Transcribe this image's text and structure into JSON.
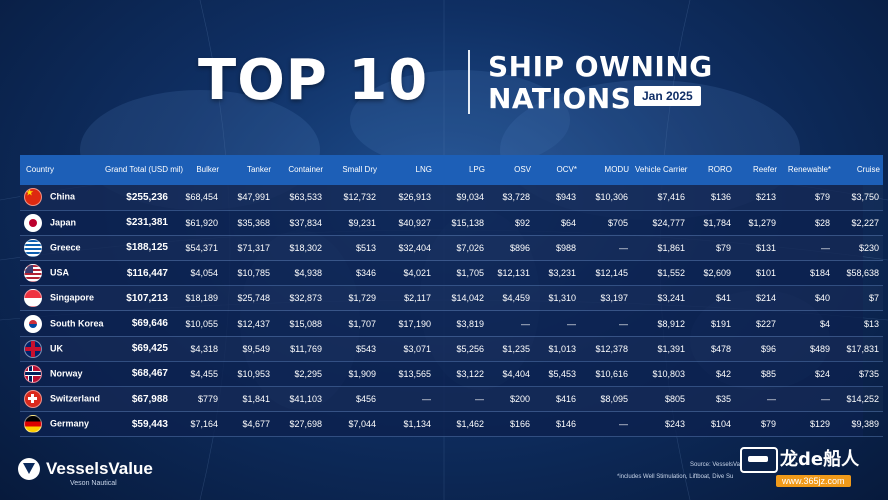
{
  "title": {
    "main": "TOP 10",
    "line1": "SHIP OWNING",
    "line2": "NATIONS",
    "date": "Jan 2025"
  },
  "table": {
    "headers": [
      "Country",
      "Grand Total (USD mil)",
      "Bulker",
      "Tanker",
      "Container",
      "Small Dry",
      "LNG",
      "LPG",
      "OSV",
      "OCV*",
      "MODU",
      "Vehicle Carrier",
      "RORO",
      "Reefer",
      "Renewable*",
      "Cruise"
    ],
    "rows": [
      {
        "flag": "cn",
        "cells": [
          "China",
          "$255,236",
          "$68,454",
          "$47,991",
          "$63,533",
          "$12,732",
          "$26,913",
          "$9,034",
          "$3,728",
          "$943",
          "$10,306",
          "$7,416",
          "$136",
          "$213",
          "$79",
          "$3,750"
        ]
      },
      {
        "flag": "jp",
        "cells": [
          "Japan",
          "$231,381",
          "$61,920",
          "$35,368",
          "$37,834",
          "$9,231",
          "$40,927",
          "$15,138",
          "$92",
          "$64",
          "$705",
          "$24,777",
          "$1,784",
          "$1,279",
          "$28",
          "$2,227"
        ]
      },
      {
        "flag": "gr",
        "cells": [
          "Greece",
          "$188,125",
          "$54,371",
          "$71,317",
          "$18,302",
          "$513",
          "$32,404",
          "$7,026",
          "$896",
          "$988",
          "—",
          "$1,861",
          "$79",
          "$131",
          "—",
          "$230"
        ]
      },
      {
        "flag": "us",
        "cells": [
          "USA",
          "$116,447",
          "$4,054",
          "$10,785",
          "$4,938",
          "$346",
          "$4,021",
          "$1,705",
          "$12,131",
          "$3,231",
          "$12,145",
          "$1,552",
          "$2,609",
          "$101",
          "$184",
          "$58,638"
        ]
      },
      {
        "flag": "sg",
        "cells": [
          "Singapore",
          "$107,213",
          "$18,189",
          "$25,748",
          "$32,873",
          "$1,729",
          "$2,117",
          "$14,042",
          "$4,459",
          "$1,310",
          "$3,197",
          "$3,241",
          "$41",
          "$214",
          "$40",
          "$7"
        ]
      },
      {
        "flag": "kr",
        "cells": [
          "South Korea",
          "$69,646",
          "$10,055",
          "$12,437",
          "$15,088",
          "$1,707",
          "$17,190",
          "$3,819",
          "—",
          "—",
          "—",
          "$8,912",
          "$191",
          "$227",
          "$4",
          "$13"
        ]
      },
      {
        "flag": "uk",
        "cells": [
          "UK",
          "$69,425",
          "$4,318",
          "$9,549",
          "$11,769",
          "$543",
          "$3,071",
          "$5,256",
          "$1,235",
          "$1,013",
          "$12,378",
          "$1,391",
          "$478",
          "$96",
          "$489",
          "$17,831"
        ]
      },
      {
        "flag": "no",
        "cells": [
          "Norway",
          "$68,467",
          "$4,455",
          "$10,953",
          "$2,295",
          "$1,909",
          "$13,565",
          "$3,122",
          "$4,404",
          "$5,453",
          "$10,616",
          "$10,803",
          "$42",
          "$85",
          "$24",
          "$735"
        ]
      },
      {
        "flag": "ch",
        "cells": [
          "Switzerland",
          "$67,988",
          "$779",
          "$1,841",
          "$41,103",
          "$456",
          "—",
          "—",
          "$200",
          "$416",
          "$8,095",
          "$805",
          "$35",
          "—",
          "—",
          "$14,252"
        ]
      },
      {
        "flag": "de",
        "cells": [
          "Germany",
          "$59,443",
          "$7,164",
          "$4,677",
          "$27,698",
          "$7,044",
          "$1,134",
          "$1,462",
          "$166",
          "$146",
          "—",
          "$243",
          "$104",
          "$79",
          "$129",
          "$9,389"
        ]
      }
    ]
  },
  "logo": {
    "name": "VesselsValue",
    "sub": "Veson Nautical"
  },
  "footer": {
    "source": "Source: VesselsVal",
    "footnote": "*includes Well Stimulation, Liftboat, Dive Su"
  },
  "watermark": {
    "text": "龙de船人",
    "url": "www.365jz.com"
  }
}
